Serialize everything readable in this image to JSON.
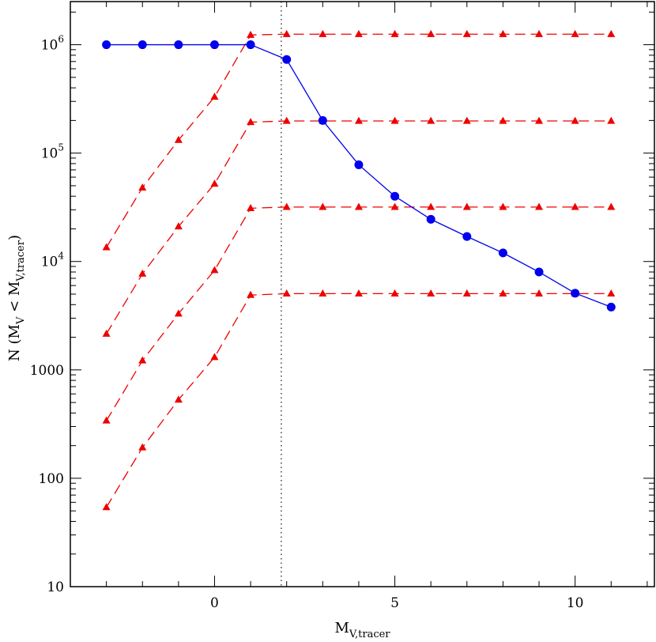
{
  "chart_data": {
    "type": "line",
    "title": "",
    "xlabel": {
      "main": "M",
      "sub": "V,tracer"
    },
    "ylabel": {
      "main": "N",
      "open": " (",
      "m1": "M",
      "m1sub": "V",
      "lt": " < ",
      "m2": "M",
      "m2sub": "V,tracer",
      "close": ")"
    },
    "xlim": [
      -4,
      12.2
    ],
    "ylim": [
      10,
      2500000
    ],
    "yscale": "log",
    "xticks": [
      {
        "value": 0,
        "label": "0"
      },
      {
        "value": 5,
        "label": "5"
      },
      {
        "value": 10,
        "label": "10"
      }
    ],
    "yticks": [
      {
        "value": 10,
        "label": "10"
      },
      {
        "value": 100,
        "label": "100"
      },
      {
        "value": 1000,
        "label": "1000"
      },
      {
        "value": 10000,
        "label": "10",
        "exp": "4"
      },
      {
        "value": 100000,
        "label": "10",
        "exp": "5"
      },
      {
        "value": 1000000,
        "label": "10",
        "exp": "6"
      }
    ],
    "vline": {
      "x": 1.85,
      "style": "dotted",
      "color": "#333333"
    },
    "series": [
      {
        "color": "#0000ee",
        "marker": "circle",
        "line": "solid",
        "x": [
          -3,
          -2,
          -1,
          0,
          1,
          2,
          3,
          4,
          5,
          6,
          7,
          8,
          9,
          10,
          11
        ],
        "y": [
          1000000,
          1000000,
          1000000,
          1000000,
          1000000,
          730000,
          200000,
          78000,
          40000,
          24500,
          17000,
          12000,
          8000,
          5100,
          3800
        ]
      },
      {
        "color": "#ee0000",
        "marker": "triangle",
        "line": "dashed",
        "x": [
          -3,
          -2,
          -1,
          0,
          1,
          2,
          3,
          4,
          5,
          6,
          7,
          8,
          9,
          10,
          11
        ],
        "y": [
          13500,
          48000,
          132000,
          330000,
          1230000,
          1250000,
          1250000,
          1250000,
          1250000,
          1250000,
          1250000,
          1250000,
          1250000,
          1250000,
          1250000
        ]
      },
      {
        "color": "#ee0000",
        "marker": "triangle",
        "line": "dashed",
        "x": [
          -3,
          -2,
          -1,
          0,
          1,
          2,
          3,
          4,
          5,
          6,
          7,
          8,
          9,
          10,
          11
        ],
        "y": [
          2150,
          7700,
          21000,
          52000,
          193000,
          198000,
          198000,
          198000,
          198000,
          198000,
          198000,
          198000,
          198000,
          198000,
          198000
        ]
      },
      {
        "color": "#ee0000",
        "marker": "triangle",
        "line": "dashed",
        "x": [
          -3,
          -2,
          -1,
          0,
          1,
          2,
          3,
          4,
          5,
          6,
          7,
          8,
          9,
          10,
          11
        ],
        "y": [
          340,
          1220,
          3300,
          8300,
          31000,
          31800,
          31800,
          31800,
          31800,
          31800,
          31800,
          31800,
          31800,
          31800,
          31800
        ]
      },
      {
        "color": "#ee0000",
        "marker": "triangle",
        "line": "dashed",
        "x": [
          -3,
          -2,
          -1,
          0,
          1,
          2,
          3,
          4,
          5,
          6,
          7,
          8,
          9,
          10,
          11
        ],
        "y": [
          54,
          192,
          530,
          1310,
          4900,
          5050,
          5050,
          5050,
          5050,
          5050,
          5050,
          5050,
          5050,
          5050,
          5050
        ]
      }
    ]
  }
}
